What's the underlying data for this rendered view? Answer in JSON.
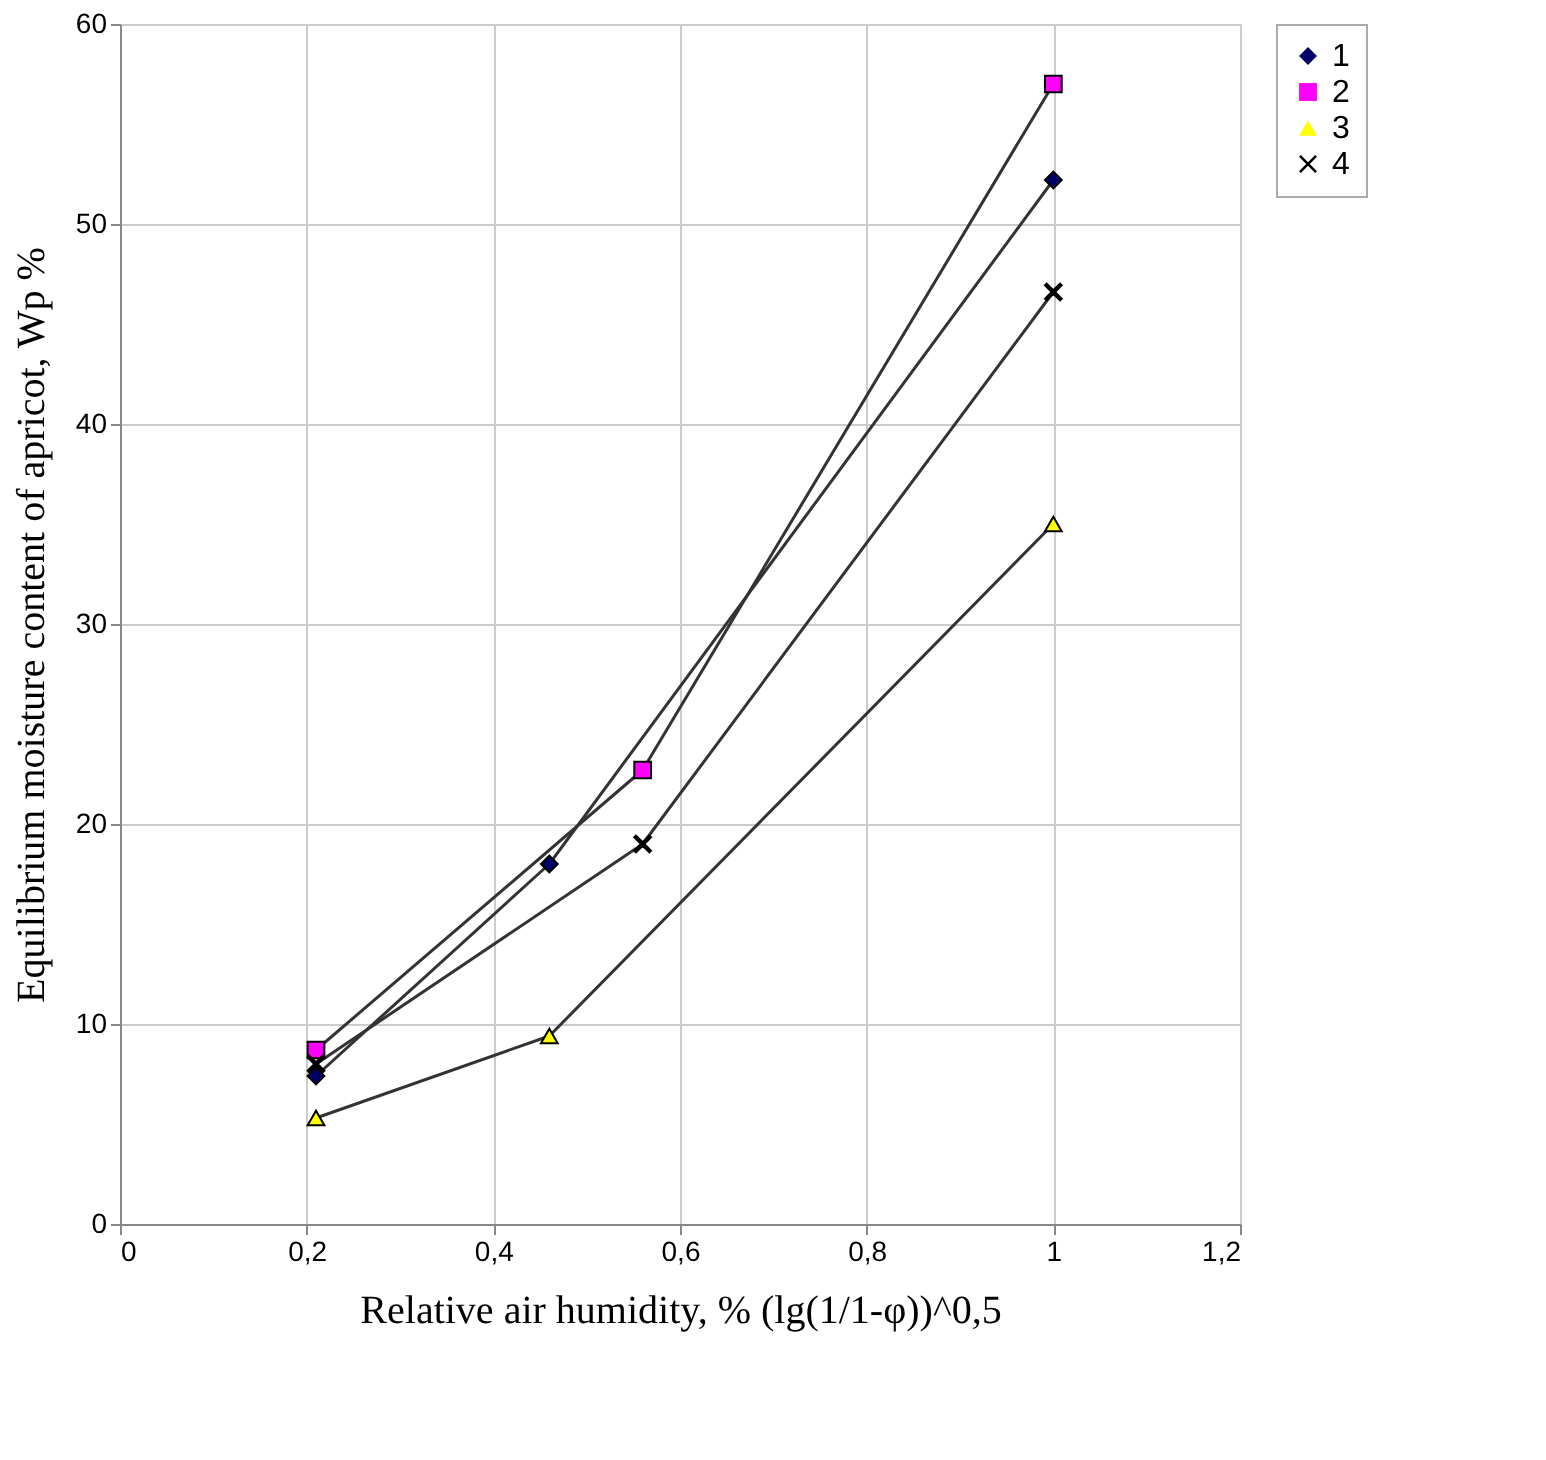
{
  "chart_data": {
    "type": "line",
    "xlabel": "Relative air humidity, %  (lg(1/1-φ))^0,5",
    "ylabel": "Equilibrium moisture content of apricot, Wp %",
    "series": [
      {
        "name": "1",
        "color": "#000066",
        "marker": "diamond",
        "x": [
          0.21,
          0.46,
          1
        ],
        "values": [
          7.4,
          18,
          52.2
        ]
      },
      {
        "name": "2",
        "color": "#ff00ff",
        "marker": "square",
        "x": [
          0.21,
          0.56,
          1
        ],
        "values": [
          8.7,
          22.7,
          57
        ]
      },
      {
        "name": "3",
        "color": "#ffff00",
        "marker": "triangle",
        "x": [
          0.21,
          0.46,
          1
        ],
        "values": [
          5.3,
          9.4,
          35
        ]
      },
      {
        "name": "4",
        "color": "#000000",
        "marker": "cross",
        "x": [
          0.21,
          0.56,
          1
        ],
        "values": [
          8.0,
          19,
          46.6
        ]
      }
    ],
    "xlim": [
      0,
      1.2
    ],
    "xticks": [
      0,
      {
        "value": 0.2,
        "label": "0,2"
      },
      {
        "value": 0.4,
        "label": "0,4"
      },
      {
        "value": 0.6,
        "label": "0,6"
      },
      {
        "value": 0.8,
        "label": "0,8"
      },
      1,
      {
        "value": 1.2,
        "label": "1,2"
      }
    ],
    "ylim": [
      0,
      60
    ],
    "yticks": [
      0,
      10,
      20,
      30,
      40,
      50,
      60
    ],
    "grid": true,
    "legend": "right",
    "line_style": "solid"
  }
}
